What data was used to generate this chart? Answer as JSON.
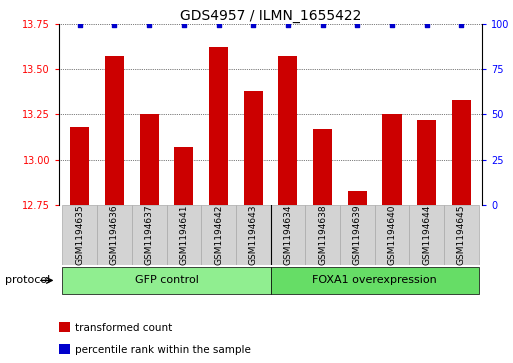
{
  "title": "GDS4957 / ILMN_1655422",
  "samples": [
    "GSM1194635",
    "GSM1194636",
    "GSM1194637",
    "GSM1194641",
    "GSM1194642",
    "GSM1194643",
    "GSM1194634",
    "GSM1194638",
    "GSM1194639",
    "GSM1194640",
    "GSM1194644",
    "GSM1194645"
  ],
  "bar_values": [
    13.18,
    13.57,
    13.25,
    13.07,
    13.62,
    13.38,
    13.57,
    13.17,
    12.83,
    13.25,
    13.22,
    13.33
  ],
  "bar_color": "#cc0000",
  "dot_color": "#0000cc",
  "ylim_left": [
    12.75,
    13.75
  ],
  "ylim_right": [
    0,
    100
  ],
  "yticks_left": [
    12.75,
    13.0,
    13.25,
    13.5,
    13.75
  ],
  "yticks_right": [
    0,
    25,
    50,
    75,
    100
  ],
  "groups": [
    {
      "label": "GFP control",
      "start": 0,
      "end": 6,
      "color": "#90ee90"
    },
    {
      "label": "FOXA1 overexpression",
      "start": 6,
      "end": 12,
      "color": "#66dd66"
    }
  ],
  "protocol_label": "protocol",
  "legend_bar_label": "transformed count",
  "legend_dot_label": "percentile rank within the sample",
  "background_color": "#ffffff",
  "cell_bg_color": "#d3d3d3",
  "cell_border_color": "#aaaaaa",
  "title_fontsize": 10,
  "tick_fontsize": 7,
  "label_fontsize": 6.5,
  "legend_fontsize": 7.5,
  "proto_fontsize": 8
}
